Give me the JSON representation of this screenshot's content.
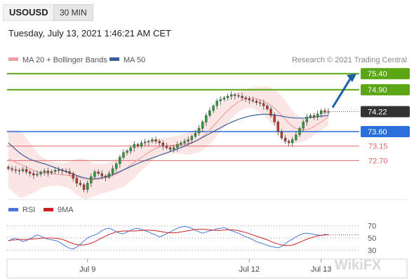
{
  "header": {
    "symbol": "USOUSD",
    "timeframe": "30 MIN",
    "datetime": "Tuesday, July 13, 2021 1:46:21 AM CET"
  },
  "legend": {
    "ma20": "MA 20 + Bollinger Bands",
    "ma50": "MA 50",
    "copyright": "Research © 2021 Trading Central",
    "rsi": "RSI",
    "rsi_ma": "9MA"
  },
  "colors": {
    "resistance": "#5aa614",
    "current": "#333333",
    "pivot": "#2a6fdb",
    "support": "#e06666",
    "ma20": "#f0a0a0",
    "ma50": "#3a5f9a",
    "arrow": "#1a5fa8",
    "candle_up": "#2e9e3a",
    "candle_down": "#c0392b",
    "rsi": "#4a78d8",
    "rsi_ma": "#cc2222"
  },
  "chart_data": [
    {
      "type": "candlestick",
      "title": "USOUSD 30 MIN",
      "ylim": [
        71.6,
        75.6
      ],
      "x_ticks": [
        "Jul 9",
        "Jul 12",
        "Jul 13"
      ],
      "levels": [
        {
          "label": "75.40",
          "value": 75.4,
          "kind": "resistance"
        },
        {
          "label": "74.90",
          "value": 74.9,
          "kind": "resistance"
        },
        {
          "label": "74.22",
          "value": 74.22,
          "kind": "current"
        },
        {
          "label": "73.60",
          "value": 73.6,
          "kind": "pivot"
        },
        {
          "label": "73.15",
          "value": 73.15,
          "kind": "support"
        },
        {
          "label": "72.70",
          "value": 72.7,
          "kind": "support"
        }
      ],
      "close": [
        72.45,
        72.42,
        72.4,
        72.38,
        72.43,
        72.35,
        72.3,
        72.25,
        72.28,
        72.34,
        72.38,
        72.32,
        72.36,
        72.4,
        72.41,
        72.38,
        72.36,
        72.3,
        72.15,
        72.0,
        71.95,
        71.8,
        72.0,
        72.2,
        72.35,
        72.3,
        72.22,
        72.18,
        72.3,
        72.45,
        72.6,
        72.8,
        72.95,
        73.0,
        73.1,
        73.2,
        73.15,
        73.25,
        73.28,
        73.3,
        73.35,
        73.3,
        73.25,
        73.15,
        73.1,
        73.05,
        73.1,
        73.2,
        73.25,
        73.3,
        73.35,
        73.45,
        73.55,
        73.7,
        73.9,
        74.1,
        74.25,
        74.4,
        74.55,
        74.6,
        74.65,
        74.7,
        74.75,
        74.72,
        74.7,
        74.65,
        74.62,
        74.58,
        74.55,
        74.5,
        74.48,
        74.4,
        74.3,
        74.1,
        73.9,
        73.6,
        73.4,
        73.3,
        73.25,
        73.35,
        73.5,
        73.7,
        73.9,
        74.05,
        74.1,
        74.05,
        74.15,
        74.25,
        74.2,
        74.22
      ],
      "ma20": [
        72.75,
        72.7,
        72.65,
        72.6,
        72.55,
        72.5,
        72.45,
        72.4,
        72.36,
        72.33,
        72.32,
        72.3,
        72.29,
        72.28,
        72.27,
        72.26,
        72.25,
        72.24,
        72.22,
        72.2,
        72.17,
        72.13,
        72.11,
        72.1,
        72.11,
        72.12,
        72.14,
        72.16,
        72.19,
        72.23,
        72.28,
        72.34,
        72.41,
        72.48,
        72.56,
        72.64,
        72.72,
        72.8,
        72.88,
        72.95,
        73.02,
        73.08,
        73.12,
        73.15,
        73.16,
        73.17,
        73.18,
        73.19,
        73.2,
        73.21,
        73.23,
        73.26,
        73.3,
        73.36,
        73.44,
        73.54,
        73.65,
        73.77,
        73.9,
        74.02,
        74.14,
        74.25,
        74.35,
        74.44,
        74.52,
        74.58,
        74.62,
        74.64,
        74.64,
        74.62,
        74.59,
        74.55,
        74.49,
        74.42,
        74.33,
        74.22,
        74.1,
        73.98,
        73.86,
        73.77,
        73.7,
        73.66,
        73.65,
        73.66,
        73.7,
        73.76,
        73.83,
        73.9,
        73.98,
        74.05
      ],
      "ma50": [
        73.25,
        73.15,
        73.05,
        72.95,
        72.87,
        72.8,
        72.74,
        72.7,
        72.66,
        72.63,
        72.6,
        72.56,
        72.52,
        72.48,
        72.44,
        72.4,
        72.36,
        72.32,
        72.28,
        72.24,
        72.2,
        72.17,
        72.15,
        72.14,
        72.14,
        72.15,
        72.17,
        72.2,
        72.23,
        72.27,
        72.31,
        72.36,
        72.41,
        72.46,
        72.51,
        72.56,
        72.61,
        72.66,
        72.7,
        72.74,
        72.78,
        72.82,
        72.86,
        72.9,
        72.94,
        72.98,
        73.02,
        73.06,
        73.1,
        73.15,
        73.2,
        73.25,
        73.3,
        73.36,
        73.42,
        73.48,
        73.54,
        73.6,
        73.66,
        73.72,
        73.78,
        73.84,
        73.89,
        73.94,
        73.98,
        74.02,
        74.05,
        74.08,
        74.1,
        74.12,
        74.13,
        74.14,
        74.14,
        74.13,
        74.12,
        74.1,
        74.08,
        74.06,
        74.04,
        74.03,
        74.02,
        74.02,
        74.02,
        74.03,
        74.04,
        74.05,
        74.06,
        74.08,
        74.09,
        74.1
      ],
      "bb_width": [
        0.9,
        0.95,
        1.0,
        1.05,
        1.0,
        0.9,
        0.8,
        0.7,
        0.6,
        0.5,
        0.45,
        0.4,
        0.38,
        0.36,
        0.35,
        0.36,
        0.38,
        0.42,
        0.48,
        0.55,
        0.6,
        0.62,
        0.6,
        0.55,
        0.5,
        0.48,
        0.46,
        0.45,
        0.45,
        0.46,
        0.48,
        0.5,
        0.52,
        0.52,
        0.5,
        0.48,
        0.45,
        0.42,
        0.38,
        0.35,
        0.32,
        0.3,
        0.28,
        0.27,
        0.26,
        0.26,
        0.27,
        0.28,
        0.3,
        0.32,
        0.34,
        0.36,
        0.38,
        0.4,
        0.42,
        0.44,
        0.45,
        0.45,
        0.44,
        0.42,
        0.4,
        0.38,
        0.36,
        0.34,
        0.32,
        0.3,
        0.3,
        0.31,
        0.33,
        0.36,
        0.4,
        0.45,
        0.5,
        0.55,
        0.58,
        0.6,
        0.6,
        0.58,
        0.55,
        0.5,
        0.45,
        0.4,
        0.36,
        0.33,
        0.3,
        0.28,
        0.27,
        0.26,
        0.26,
        0.26
      ]
    },
    {
      "type": "line",
      "title": "RSI",
      "ylim": [
        20,
        80
      ],
      "y_ticks": [
        70,
        50,
        30
      ],
      "series": [
        {
          "name": "RSI",
          "values": [
            45,
            48,
            50,
            47,
            44,
            46,
            49,
            52,
            55,
            53,
            50,
            48,
            47,
            46,
            44,
            40,
            36,
            33,
            32,
            35,
            40,
            45,
            50,
            53,
            55,
            58,
            62,
            65,
            66,
            64,
            60,
            58,
            57,
            60,
            63,
            65,
            66,
            64,
            62,
            60,
            57,
            55,
            52,
            54,
            57,
            60,
            63,
            66,
            68,
            69,
            68,
            66,
            63,
            60,
            58,
            60,
            62,
            63,
            65,
            66,
            67,
            65,
            62,
            60,
            58,
            55,
            52,
            50,
            47,
            44,
            42,
            40,
            38,
            36,
            35,
            34,
            36,
            40,
            45,
            48,
            52,
            55,
            57,
            58,
            57,
            56,
            55,
            54,
            56,
            55
          ]
        },
        {
          "name": "9MA",
          "values": [
            46,
            46.5,
            47,
            47.5,
            47.5,
            47.5,
            48,
            48.5,
            49,
            49.5,
            50,
            50,
            50,
            49.5,
            49,
            47.5,
            45.5,
            43,
            41,
            39,
            38.5,
            38.5,
            39.5,
            41.5,
            44,
            47,
            50,
            53,
            56,
            58,
            60,
            61,
            61.5,
            61.5,
            61.5,
            61.5,
            62,
            62.5,
            63,
            63,
            62.5,
            62,
            61,
            60,
            59,
            58.5,
            58.5,
            59,
            60,
            61,
            62,
            63,
            64,
            64.5,
            64.5,
            64,
            63.5,
            63,
            62.5,
            62.5,
            63,
            63.5,
            63.5,
            63,
            62,
            60.5,
            59,
            57,
            55,
            53,
            51,
            49,
            47,
            44.5,
            42,
            40,
            38.5,
            37.5,
            37.5,
            38.5,
            40.5,
            43,
            45.5,
            48,
            50,
            52,
            53.5,
            54.5,
            55,
            55.5
          ]
        }
      ]
    }
  ],
  "watermark": "WikiFX"
}
